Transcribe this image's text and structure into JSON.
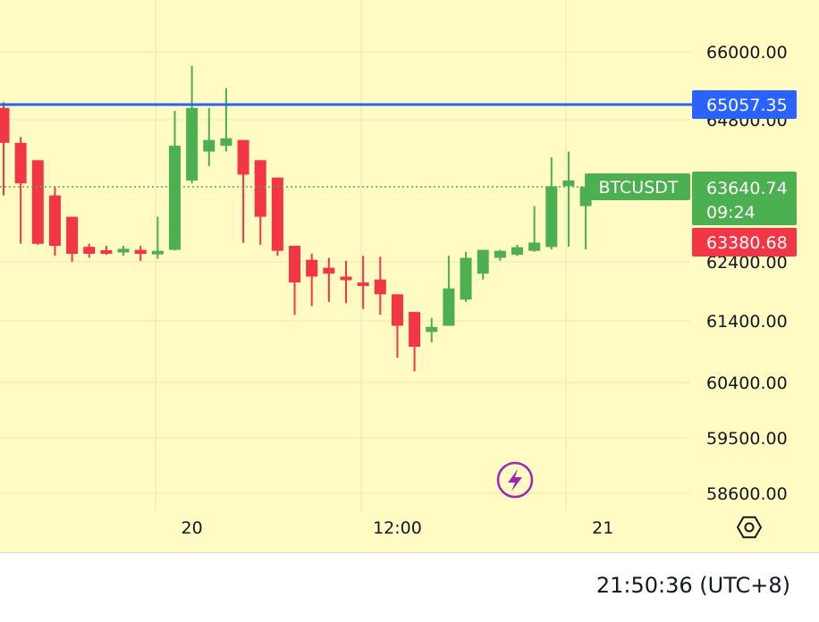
{
  "chart_data": {
    "type": "candlestick",
    "y_ticks": [
      "66000.00",
      "64800.00",
      "62400.00",
      "61400.00",
      "60400.00",
      "59500.00",
      "58600.00"
    ],
    "x_ticks": [
      {
        "label": "20",
        "x": 11
      },
      {
        "label": "12:00",
        "x": 23
      },
      {
        "label": "21",
        "x": 35
      }
    ],
    "symbol": "BTCUSDT",
    "last_price": "63640.74",
    "countdown": "09:24",
    "horizontal_line_price": "65057.35",
    "bid_price": "63380.68",
    "candles": [
      {
        "o": 65000,
        "h": 65100,
        "l": 63600,
        "c": 64400
      },
      {
        "o": 64400,
        "h": 64500,
        "l": 63300,
        "c": 63700
      },
      {
        "o": 64100,
        "h": 64100,
        "l": 63250,
        "c": 63300
      },
      {
        "o": 63600,
        "h": 63650,
        "l": 62700,
        "c": 63200
      },
      {
        "o": 63500,
        "h": 63500,
        "l": 62400,
        "c": 62800
      },
      {
        "o": 63150,
        "h": 63300,
        "l": 62600,
        "c": 62800
      },
      {
        "o": 62980,
        "h": 63200,
        "l": 62750,
        "c": 62950
      },
      {
        "o": 62950,
        "h": 63200,
        "l": 62700,
        "c": 63050
      },
      {
        "o": 63000,
        "h": 63200,
        "l": 62450,
        "c": 62800
      },
      {
        "o": 62850,
        "h": 63500,
        "l": 62550,
        "c": 62950
      },
      {
        "o": 63000,
        "h": 64950,
        "l": 62970,
        "c": 64350
      },
      {
        "o": 63750,
        "h": 65750,
        "l": 63700,
        "c": 65000
      },
      {
        "o": 64250,
        "h": 65000,
        "l": 64000,
        "c": 64450
      },
      {
        "o": 64350,
        "h": 65350,
        "l": 64250,
        "c": 64480
      },
      {
        "o": 64450,
        "h": 64450,
        "l": 63350,
        "c": 63850
      },
      {
        "o": 64100,
        "h": 64100,
        "l": 63250,
        "c": 63500
      },
      {
        "o": 63800,
        "h": 63800,
        "l": 62700,
        "c": 62950
      },
      {
        "o": 63200,
        "h": 63200,
        "l": 61500,
        "c": 62050
      },
      {
        "o": 62500,
        "h": 62800,
        "l": 61650,
        "c": 62150
      },
      {
        "o": 62300,
        "h": 62600,
        "l": 61720,
        "c": 62200
      },
      {
        "o": 62150,
        "h": 62450,
        "l": 61700,
        "c": 62100
      },
      {
        "o": 62050,
        "h": 62700,
        "l": 61600,
        "c": 62000
      },
      {
        "o": 62100,
        "h": 62650,
        "l": 61500,
        "c": 61850
      },
      {
        "o": 61850,
        "h": 61850,
        "l": 60800,
        "c": 61320
      },
      {
        "o": 61550,
        "h": 61550,
        "l": 60580,
        "c": 60980
      },
      {
        "o": 61220,
        "h": 61450,
        "l": 61050,
        "c": 61300
      },
      {
        "o": 61320,
        "h": 62700,
        "l": 61320,
        "c": 61950
      },
      {
        "o": 61760,
        "h": 62900,
        "l": 61720,
        "c": 62600
      },
      {
        "o": 62200,
        "h": 63000,
        "l": 62100,
        "c": 63000
      },
      {
        "o": 62600,
        "h": 63000,
        "l": 62450,
        "c": 62950
      },
      {
        "o": 62750,
        "h": 63250,
        "l": 62690,
        "c": 63130
      },
      {
        "o": 62950,
        "h": 63550,
        "l": 62900,
        "c": 63360
      },
      {
        "o": 63140,
        "h": 64150,
        "l": 63020,
        "c": 63650
      },
      {
        "o": 63650,
        "h": 64250,
        "l": 63150,
        "c": 63750
      },
      {
        "o": 63550,
        "h": 63870,
        "l": 63030,
        "c": 63640
      }
    ]
  },
  "footer": {
    "clock": "21:50:36 (UTC+8)"
  }
}
